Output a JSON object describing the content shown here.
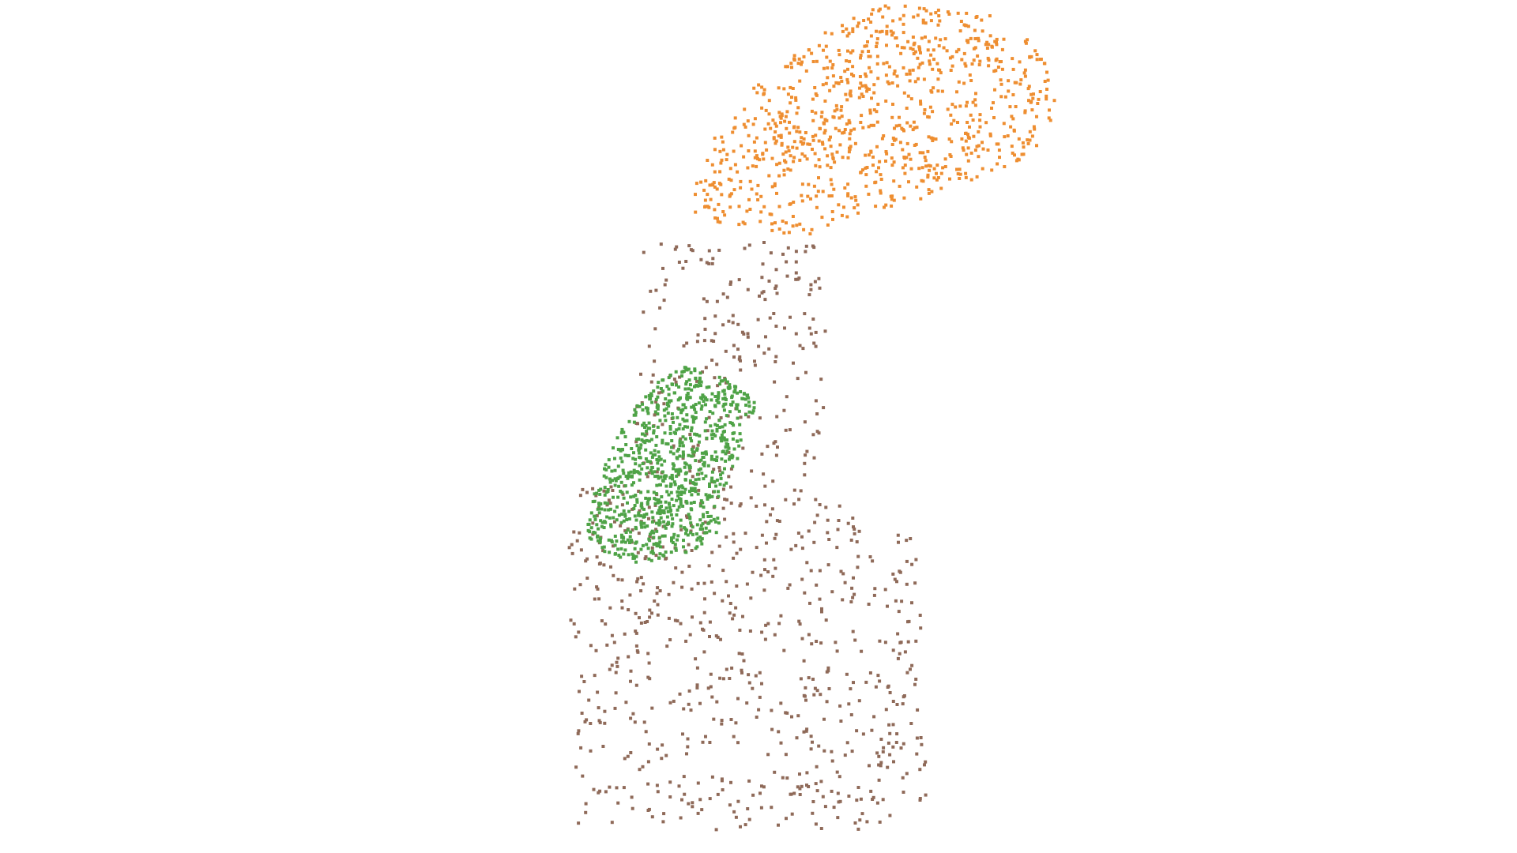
{
  "scene": {
    "background": "#ffffff",
    "segments": [
      {
        "part": "upper",
        "color": "#ee8e31",
        "point_count": 900
      },
      {
        "part": "body",
        "color": "#8f6a59",
        "point_count": 900
      },
      {
        "part": "front-patch",
        "color": "#4fa347",
        "point_count": 900
      }
    ]
  }
}
